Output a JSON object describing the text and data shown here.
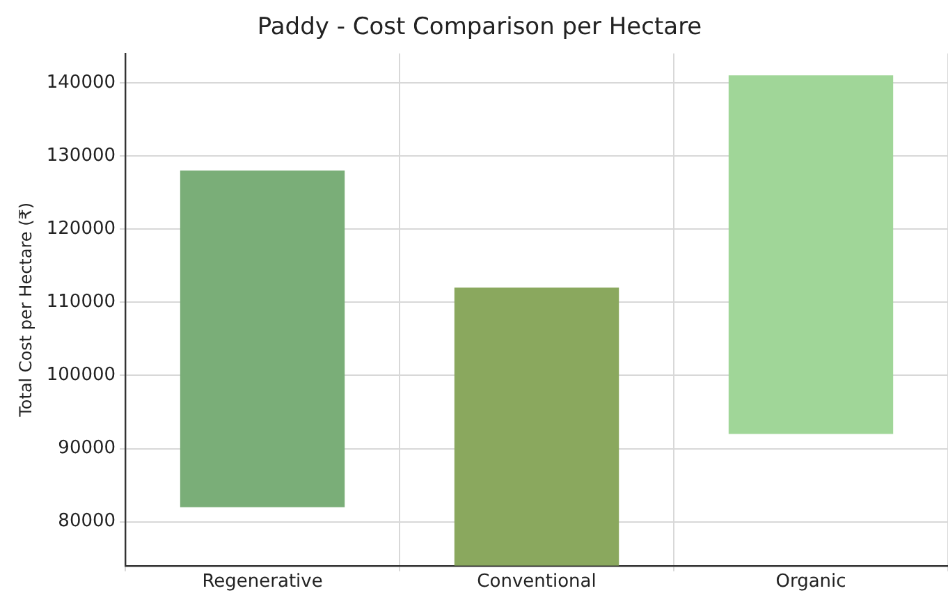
{
  "chart_data": {
    "type": "bar",
    "title": "Paddy - Cost Comparison per Hectare",
    "ylabel": "Total Cost per Hectare (₹)",
    "categories": [
      "Regenerative",
      "Conventional",
      "Organic"
    ],
    "base": [
      82000,
      74000,
      92000
    ],
    "values": [
      46000,
      38000,
      49000
    ],
    "colors": [
      "#7aae78",
      "#8aa85e",
      "#a0d698"
    ],
    "ylim": [
      74000,
      144000
    ],
    "yticks": [
      80000,
      90000,
      100000,
      110000,
      120000,
      130000,
      140000
    ],
    "grid": true
  }
}
